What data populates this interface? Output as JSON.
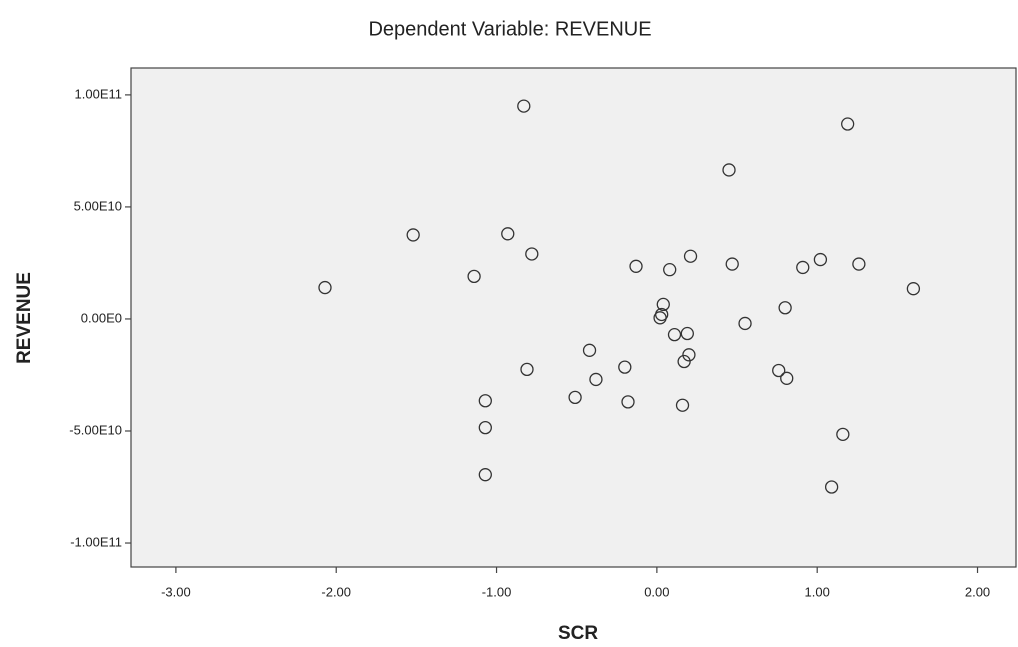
{
  "chart_data": {
    "type": "scatter",
    "title": "Dependent Variable: REVENUE",
    "xlabel": "SCR",
    "ylabel": "REVENUE",
    "x": [
      -0.83,
      1.19,
      0.45,
      -1.52,
      -0.93,
      -0.78,
      -1.14,
      -2.07,
      -0.13,
      0.08,
      0.21,
      0.47,
      0.91,
      1.02,
      1.26,
      1.6,
      0.04,
      0.03,
      0.02,
      0.8,
      0.55,
      0.11,
      0.19,
      -0.42,
      0.2,
      0.17,
      -0.81,
      -0.2,
      -0.38,
      0.76,
      0.81,
      -1.07,
      -0.51,
      -0.18,
      0.16,
      -1.07,
      1.16,
      -1.07,
      1.09
    ],
    "values": [
      95000000000,
      87000000000,
      66500000000,
      37500000000,
      38000000000,
      29000000000,
      19000000000,
      14000000000,
      23500000000,
      22000000000,
      28000000000,
      24500000000,
      23000000000,
      26500000000,
      24500000000,
      13500000000,
      6500000000,
      2000000000,
      500000000,
      5000000000,
      -2000000000,
      -7000000000,
      -6500000000,
      -14000000000,
      -16000000000,
      -19000000000,
      -22500000000,
      -21500000000,
      -27000000000,
      -23000000000,
      -26500000000,
      -36500000000,
      -35000000000,
      -37000000000,
      -38500000000,
      -48500000000,
      -51500000000,
      -69500000000,
      -75000000000
    ],
    "color": "#333333",
    "xlim": [
      -3.28,
      2.24
    ],
    "xticks": [
      {
        "value": -3,
        "label": "-3.00"
      },
      {
        "value": -2,
        "label": "-2.00"
      },
      {
        "value": -1,
        "label": "-1.00"
      },
      {
        "value": 0,
        "label": "0.00"
      },
      {
        "value": 1,
        "label": "1.00"
      },
      {
        "value": 2,
        "label": "2.00"
      }
    ],
    "ylim": [
      -110700000000,
      112000000000
    ],
    "yticks": [
      {
        "value": -100000000000,
        "label": "-1.00E11"
      },
      {
        "value": -50000000000,
        "label": "-5.00E10"
      },
      {
        "value": 0,
        "label": "0.00E0"
      },
      {
        "value": 50000000000,
        "label": "5.00E10"
      },
      {
        "value": 100000000000,
        "label": "1.00E11"
      }
    ]
  }
}
